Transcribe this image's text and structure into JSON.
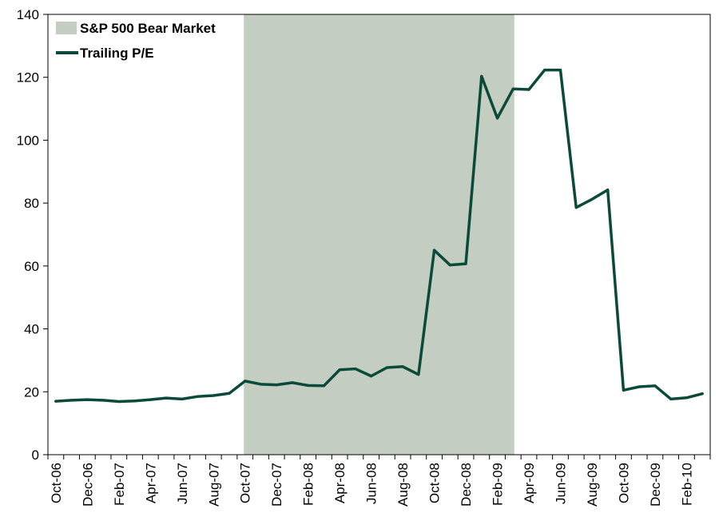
{
  "chart_data": {
    "type": "line",
    "title": "",
    "xlabel": "",
    "ylabel": "",
    "ylim": [
      0,
      140
    ],
    "yticks": [
      0,
      20,
      40,
      60,
      80,
      100,
      120,
      140
    ],
    "x_tick_labels": [
      "Oct-06",
      "Dec-06",
      "Feb-07",
      "Apr-07",
      "Jun-07",
      "Aug-07",
      "Oct-07",
      "Dec-07",
      "Feb-08",
      "Apr-08",
      "Jun-08",
      "Aug-08",
      "Oct-08",
      "Dec-08",
      "Feb-09",
      "Apr-09",
      "Jun-09",
      "Aug-09",
      "Oct-09",
      "Dec-09",
      "Feb-10"
    ],
    "x": [
      "Oct-06",
      "Nov-06",
      "Dec-06",
      "Jan-07",
      "Feb-07",
      "Mar-07",
      "Apr-07",
      "May-07",
      "Jun-07",
      "Jul-07",
      "Aug-07",
      "Sep-07",
      "Oct-07",
      "Nov-07",
      "Dec-07",
      "Jan-08",
      "Feb-08",
      "Mar-08",
      "Apr-08",
      "May-08",
      "Jun-08",
      "Jul-08",
      "Aug-08",
      "Sep-08",
      "Oct-08",
      "Nov-08",
      "Dec-08",
      "Jan-09",
      "Feb-09",
      "Mar-09",
      "Apr-09",
      "May-09",
      "Jun-09",
      "Jul-09",
      "Aug-09",
      "Sep-09",
      "Oct-09",
      "Nov-09",
      "Dec-09",
      "Jan-10",
      "Feb-10",
      "Mar-10"
    ],
    "series": [
      {
        "name": "Trailing P/E",
        "color": "#0b4a3a",
        "values": [
          17.0,
          17.3,
          17.5,
          17.3,
          16.9,
          17.1,
          17.5,
          18.0,
          17.7,
          18.5,
          18.8,
          19.5,
          23.4,
          22.4,
          22.2,
          22.9,
          22.0,
          21.9,
          27.0,
          27.3,
          25.0,
          27.7,
          28.0,
          25.5,
          65.0,
          60.3,
          60.7,
          120.3,
          107.0,
          116.3,
          116.1,
          122.3,
          122.3,
          78.6,
          81.2,
          84.2,
          20.5,
          21.6,
          21.9,
          17.7,
          18.1,
          19.4
        ]
      }
    ],
    "shaded_regions": [
      {
        "name": "S&P 500 Bear Market",
        "color": "#c4cdc2",
        "start": "Oct-07",
        "end": "Mar-09"
      }
    ],
    "legend": {
      "position": "top-left",
      "entries": [
        "S&P 500 Bear Market",
        "Trailing P/E"
      ]
    },
    "grid": false
  }
}
